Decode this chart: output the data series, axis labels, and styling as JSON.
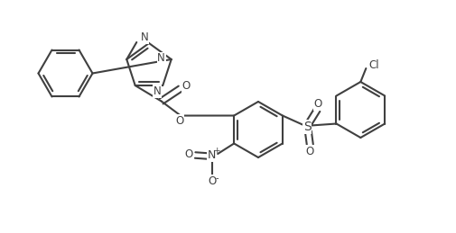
{
  "background_color": "#ffffff",
  "line_color": "#404040",
  "line_width": 1.5,
  "figsize": [
    5.06,
    2.59
  ],
  "dpi": 100,
  "xlim": [
    0,
    10.12
  ],
  "ylim": [
    0,
    5.18
  ]
}
